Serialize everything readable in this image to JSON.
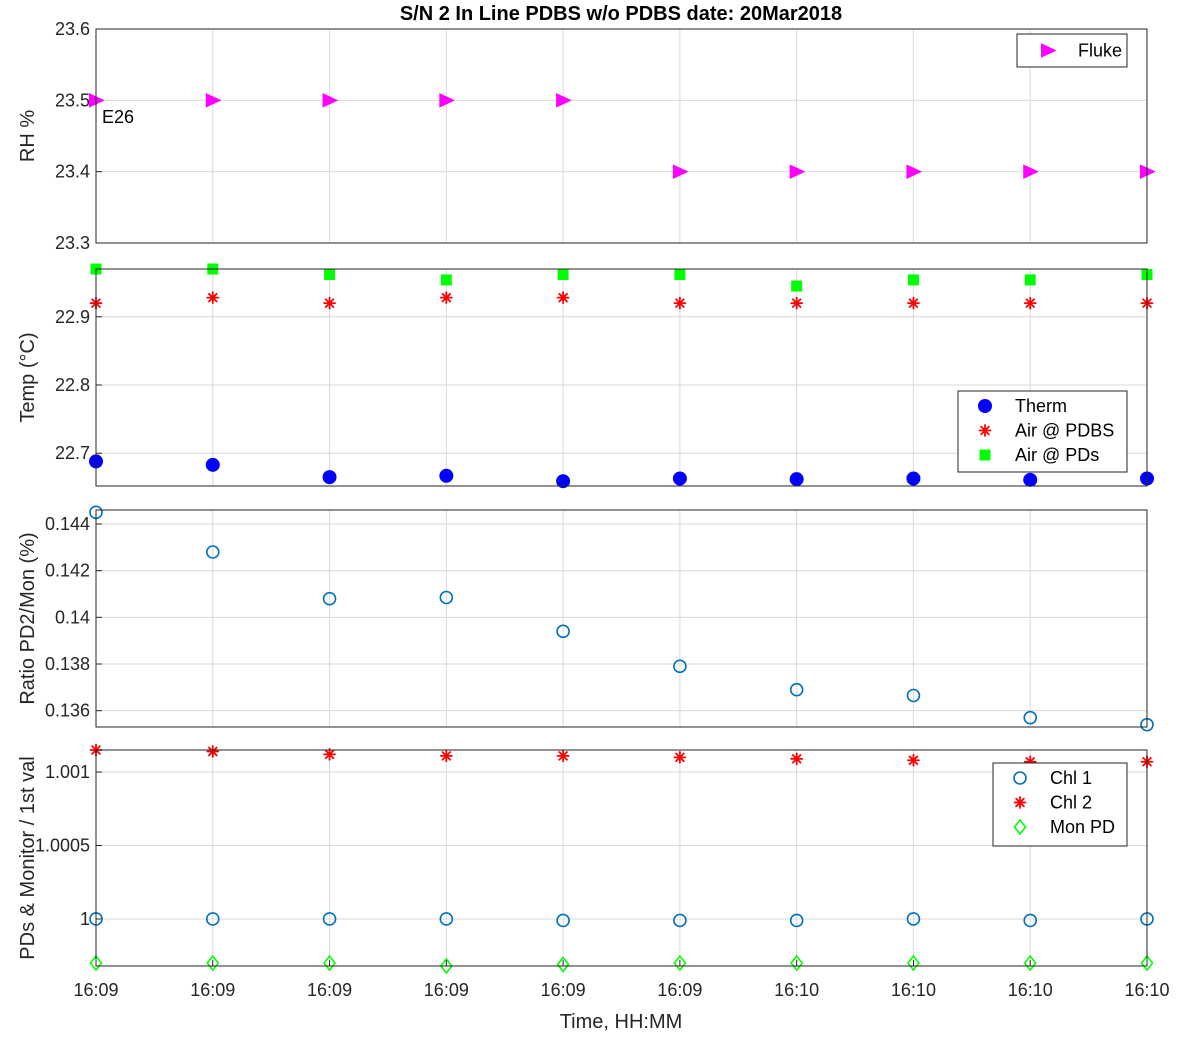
{
  "figure": {
    "title": "S/N 2 In Line PDBS w/o PDBS date: 20Mar2018",
    "xlabel": "Time, HH:MM",
    "xticklabels": [
      "16:09",
      "16:09",
      "16:09",
      "16:09",
      "16:09",
      "16:09",
      "16:10",
      "16:10",
      "16:10",
      "16:10"
    ]
  },
  "chart_data": [
    {
      "type": "scatter",
      "ylabel": "RH %",
      "ylim": [
        23.3,
        23.6
      ],
      "yticks": [
        "23.3",
        "23.4",
        "23.5",
        "23.6"
      ],
      "grid": true,
      "legend_position": "top-right",
      "annotation": "E26",
      "series": [
        {
          "name": "Fluke",
          "marker": "triangle-right",
          "color": "#ff00ff",
          "values": [
            23.5,
            23.5,
            23.5,
            23.5,
            23.5,
            23.4,
            23.4,
            23.4,
            23.4,
            23.4
          ]
        }
      ]
    },
    {
      "type": "scatter",
      "ylabel": "Temp (°C)",
      "ylim": [
        22.652,
        22.97
      ],
      "yticks": [
        "22.7",
        "22.8",
        "22.9"
      ],
      "grid": true,
      "legend_position": "bottom-right",
      "series": [
        {
          "name": "Therm",
          "marker": "filled-circle",
          "color": "#0000ff",
          "values": [
            22.688,
            22.683,
            22.665,
            22.667,
            22.659,
            22.663,
            22.662,
            22.663,
            22.661,
            22.663
          ]
        },
        {
          "name": "Air @ PDBS",
          "marker": "asterisk",
          "color": "#ff0000",
          "values": [
            22.92,
            22.928,
            22.92,
            22.928,
            22.928,
            22.92,
            22.92,
            22.92,
            22.92,
            22.92
          ]
        },
        {
          "name": "Air @ PDs",
          "marker": "filled-square",
          "color": "#00ff00",
          "values": [
            22.97,
            22.97,
            22.962,
            22.954,
            22.962,
            22.962,
            22.945,
            22.954,
            22.954,
            22.962
          ]
        }
      ]
    },
    {
      "type": "scatter",
      "ylabel": "Ratio PD2/Mon (%)",
      "ylim": [
        0.1353,
        0.1446
      ],
      "yticks": [
        "0.136",
        "0.138",
        "0.14",
        "0.142",
        "0.144"
      ],
      "grid": true,
      "series": [
        {
          "name": "",
          "marker": "open-circle",
          "color": "#0072bd",
          "values": [
            0.1445,
            0.1428,
            0.1408,
            0.14085,
            0.1394,
            0.1379,
            0.1369,
            0.13665,
            0.1357,
            0.1354
          ]
        }
      ]
    },
    {
      "type": "scatter",
      "ylabel": "PDs & Monitor / 1st val",
      "ylim": [
        0.99968,
        1.00115
      ],
      "yticks": [
        "1",
        "1.0005",
        "1.001"
      ],
      "grid": true,
      "legend_position": "top-right",
      "series": [
        {
          "name": "Chl 1",
          "marker": "open-circle",
          "color": "#0072bd",
          "values": [
            1.0,
            1.0,
            1.0,
            1.0,
            0.99999,
            0.99999,
            0.99999,
            1.0,
            0.99999,
            1.0
          ]
        },
        {
          "name": "Chl 2",
          "marker": "asterisk",
          "color": "#ff0000",
          "values": [
            1.00115,
            1.00114,
            1.00112,
            1.00111,
            1.00111,
            1.0011,
            1.00109,
            1.00108,
            1.00107,
            1.00107
          ]
        },
        {
          "name": "Mon PD",
          "marker": "open-diamond",
          "color": "#00ff00",
          "values": [
            0.9997,
            0.9997,
            0.9997,
            0.99968,
            0.99969,
            0.9997,
            0.9997,
            0.9997,
            0.9997,
            0.9997
          ]
        }
      ]
    }
  ]
}
